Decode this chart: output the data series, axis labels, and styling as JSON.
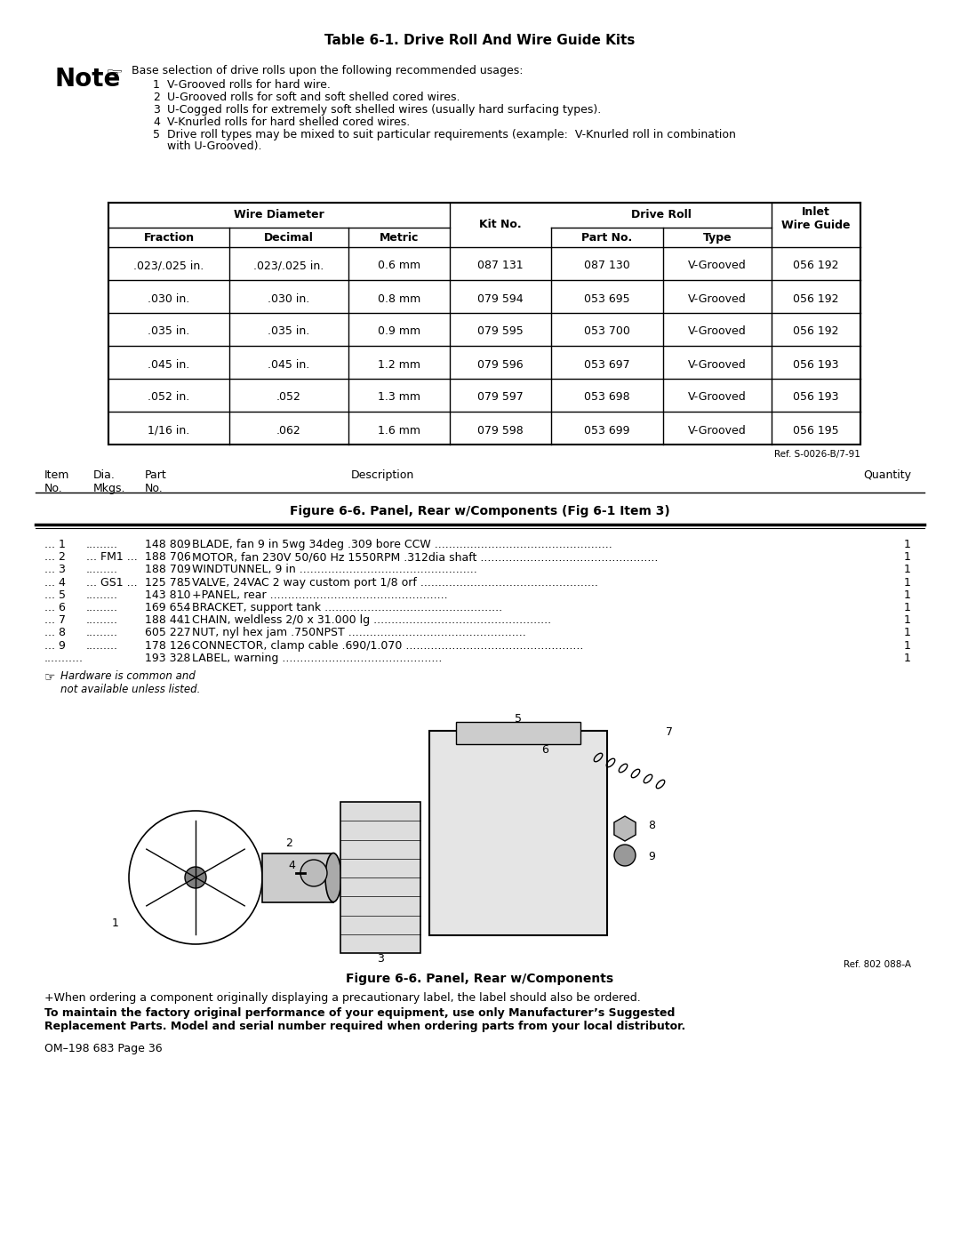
{
  "title": "Table 6-1. Drive Roll And Wire Guide Kits",
  "bg_color": "#ffffff",
  "note_text": "Base selection of drive rolls upon the following recommended usages:",
  "note_items": [
    "V-Grooved rolls for hard wire.",
    "U-Grooved rolls for soft and soft shelled cored wires.",
    "U-Cogged rolls for extremely soft shelled wires (usually hard surfacing types).",
    "V-Knurled rolls for hard shelled cored wires.",
    "Drive roll types may be mixed to suit particular requirements (example:  V-Knurled roll in combination\nwith U-Grooved)."
  ],
  "table_data": [
    [
      ".023/.025 in.",
      ".023/.025 in.",
      "0.6 mm",
      "087 131",
      "087 130",
      "V-Grooved",
      "056 192"
    ],
    [
      ".030 in.",
      ".030 in.",
      "0.8 mm",
      "079 594",
      "053 695",
      "V-Grooved",
      "056 192"
    ],
    [
      ".035 in.",
      ".035 in.",
      "0.9 mm",
      "079 595",
      "053 700",
      "V-Grooved",
      "056 192"
    ],
    [
      ".045 in.",
      ".045 in.",
      "1.2 mm",
      "079 596",
      "053 697",
      "V-Grooved",
      "056 193"
    ],
    [
      ".052 in.",
      ".052",
      "1.3 mm",
      "079 597",
      "053 698",
      "V-Grooved",
      "056 193"
    ],
    [
      "1/16 in.",
      ".062",
      "1.6 mm",
      "079 598",
      "053 699",
      "V-Grooved",
      "056 195"
    ]
  ],
  "ref_table": "Ref. S-0026-B/7-91",
  "figure_title": "Figure 6-6. Panel, Rear w/Components (Fig 6-1 Item 3)",
  "parts_list": [
    [
      "... 1",
      ".........",
      "148 809",
      "BLADE, fan 9 in 5wg 34deg .309 bore CCW",
      "1"
    ],
    [
      "... 2",
      "... FM1 ...",
      "188 706",
      "MOTOR, fan 230V 50/60 Hz 1550RPM .312dia shaft",
      "1"
    ],
    [
      "... 3",
      ".........",
      "188 709",
      "WINDTUNNEL, 9 in",
      "1"
    ],
    [
      "... 4",
      "... GS1 ...",
      "125 785",
      "VALVE, 24VAC 2 way custom port 1/8 orf",
      "1"
    ],
    [
      "... 5",
      ".........",
      "143 810",
      "+PANEL, rear",
      "1"
    ],
    [
      "... 6",
      ".........",
      "169 654",
      "BRACKET, support tank",
      "1"
    ],
    [
      "... 7",
      ".........",
      "188 441",
      "CHAIN, weldless 2/0 x 31.000 lg",
      "1"
    ],
    [
      "... 8",
      ".........",
      "605 227",
      "NUT, nyl hex jam .750NPST",
      "1"
    ],
    [
      "... 9",
      ".........",
      "178 126",
      "CONNECTOR, clamp cable .690/1.070",
      "1"
    ],
    [
      "...........",
      ".",
      "193 328",
      "LABEL, warning",
      "1"
    ]
  ],
  "hardware_note": "Hardware is common and\nnot available unless listed.",
  "ref_figure": "Ref. 802 088-A",
  "figure_caption": "Figure 6-6. Panel, Rear w/Components",
  "footnote": "+When ordering a component originally displaying a precautionary label, the label should also be ordered.",
  "bold_note": "To maintain the factory original performance of your equipment, use only Manufacturer’s Suggested\nReplacement Parts. Model and serial number required when ordering parts from your local distributor.",
  "page_ref": "OM–198 683 Page 36"
}
